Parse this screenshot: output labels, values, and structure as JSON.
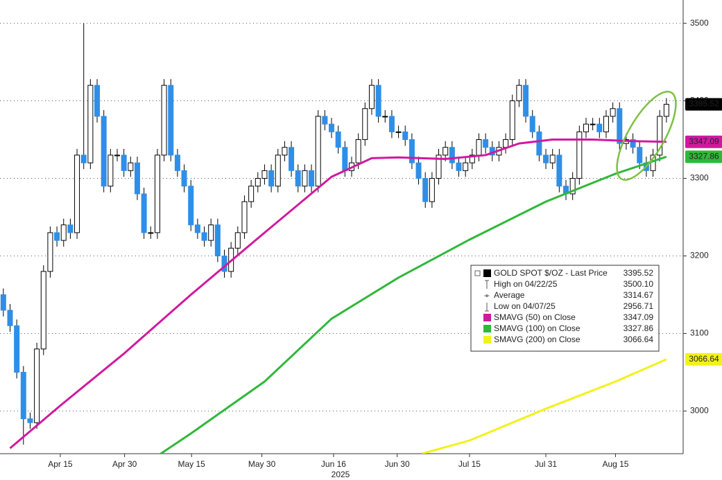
{
  "chart_data": {
    "type": "candlestick",
    "xlabel": "2025",
    "xlim": [
      -0.5,
      101.5
    ],
    "xticks": [
      {
        "value": 8.5,
        "label": "Apr 15"
      },
      {
        "value": 18.1,
        "label": "Apr 30"
      },
      {
        "value": 28.1,
        "label": "May 15"
      },
      {
        "value": 38.6,
        "label": "May 30"
      },
      {
        "value": 49.3,
        "label": "Jun 16"
      },
      {
        "value": 58.8,
        "label": "Jun 30"
      },
      {
        "value": 69.6,
        "label": "Jul 15"
      },
      {
        "value": 81,
        "label": "Jul 31"
      },
      {
        "value": 91.4,
        "label": "Aug 15"
      }
    ],
    "ylim": [
      2945,
      3530
    ],
    "yticks": [
      3000,
      3100,
      3200,
      3300,
      3400,
      3500
    ],
    "yticks_labeled": [
      0,
      1,
      2,
      3,
      5
    ],
    "grid": true,
    "up_color": "#ffffff",
    "down_color": "#2f8fe8",
    "open": [
      3150,
      3130,
      3110,
      3050,
      2990,
      2985,
      3080,
      3180,
      3230,
      3220,
      3240,
      3230,
      3330,
      3320,
      3420,
      3380,
      3290,
      3330,
      3330,
      3310,
      3320,
      3280,
      3230,
      3230,
      3330,
      3420,
      3330,
      3310,
      3290,
      3240,
      3230,
      3220,
      3240,
      3200,
      3180,
      3210,
      3230,
      3270,
      3290,
      3300,
      3310,
      3290,
      3330,
      3340,
      3310,
      3290,
      3310,
      3290,
      3380,
      3370,
      3360,
      3340,
      3310,
      3320,
      3350,
      3390,
      3420,
      3380,
      3380,
      3360,
      3360,
      3350,
      3320,
      3300,
      3270,
      3300,
      3330,
      3340,
      3320,
      3310,
      3320,
      3330,
      3350,
      3340,
      3330,
      3340,
      3350,
      3400,
      3420,
      3380,
      3360,
      3330,
      3320,
      3330,
      3290,
      3280,
      3300,
      3360,
      3370,
      3370,
      3360,
      3380,
      3390,
      3345,
      3350,
      3340,
      3320,
      3310,
      3330,
      3380
    ],
    "high": [
      3158,
      3138,
      3118,
      3058,
      2998,
      3088,
      3188,
      3238,
      3238,
      3248,
      3248,
      3338,
      3500.1,
      3428,
      3428,
      3388,
      3338,
      3338,
      3338,
      3328,
      3328,
      3288,
      3238,
      3338,
      3428,
      3428,
      3338,
      3318,
      3298,
      3248,
      3238,
      3248,
      3248,
      3208,
      3218,
      3238,
      3278,
      3298,
      3308,
      3318,
      3318,
      3338,
      3348,
      3348,
      3318,
      3318,
      3318,
      3388,
      3388,
      3378,
      3368,
      3348,
      3328,
      3358,
      3398,
      3428,
      3428,
      3388,
      3388,
      3368,
      3368,
      3358,
      3328,
      3308,
      3308,
      3338,
      3348,
      3348,
      3328,
      3328,
      3338,
      3358,
      3358,
      3348,
      3348,
      3358,
      3408,
      3428,
      3428,
      3388,
      3368,
      3338,
      3338,
      3338,
      3298,
      3308,
      3368,
      3378,
      3378,
      3378,
      3388,
      3398,
      3398,
      3358,
      3358,
      3348,
      3328,
      3338,
      3388,
      3403.52
    ],
    "low": [
      3122,
      3102,
      3042,
      2956.71,
      2977,
      2977,
      3072,
      3172,
      3212,
      3212,
      3222,
      3222,
      3312,
      3312,
      3372,
      3282,
      3282,
      3322,
      3302,
      3302,
      3272,
      3222,
      3222,
      3222,
      3322,
      3322,
      3302,
      3282,
      3232,
      3222,
      3212,
      3212,
      3192,
      3172,
      3172,
      3202,
      3222,
      3262,
      3282,
      3292,
      3282,
      3282,
      3322,
      3302,
      3282,
      3282,
      3282,
      3282,
      3362,
      3352,
      3332,
      3302,
      3302,
      3312,
      3342,
      3382,
      3372,
      3372,
      3352,
      3352,
      3342,
      3312,
      3292,
      3262,
      3262,
      3292,
      3322,
      3312,
      3302,
      3302,
      3312,
      3322,
      3332,
      3322,
      3322,
      3332,
      3342,
      3392,
      3372,
      3352,
      3322,
      3312,
      3312,
      3282,
      3272,
      3272,
      3292,
      3352,
      3362,
      3352,
      3352,
      3372,
      3337,
      3337,
      3332,
      3312,
      3302,
      3302,
      3322,
      3372
    ],
    "close": [
      3130,
      3110,
      3050,
      2990,
      2985,
      3080,
      3180,
      3230,
      3220,
      3240,
      3230,
      3330,
      3320,
      3420,
      3380,
      3290,
      3330,
      3330,
      3310,
      3320,
      3280,
      3230,
      3230,
      3330,
      3420,
      3330,
      3310,
      3290,
      3240,
      3230,
      3220,
      3240,
      3200,
      3180,
      3210,
      3230,
      3270,
      3290,
      3300,
      3310,
      3290,
      3330,
      3340,
      3310,
      3290,
      3310,
      3290,
      3380,
      3370,
      3360,
      3340,
      3310,
      3320,
      3350,
      3390,
      3420,
      3380,
      3380,
      3360,
      3360,
      3350,
      3320,
      3300,
      3270,
      3300,
      3330,
      3340,
      3320,
      3310,
      3320,
      3330,
      3350,
      3340,
      3330,
      3340,
      3350,
      3400,
      3420,
      3380,
      3360,
      3330,
      3320,
      3330,
      3290,
      3280,
      3300,
      3360,
      3370,
      3370,
      3360,
      3380,
      3390,
      3345,
      3350,
      3340,
      3320,
      3310,
      3330,
      3380,
      3395.52
    ],
    "last_label": "3395.52",
    "series": [
      {
        "name": "SMAVG (50)  on Close",
        "color": "#d0199f",
        "x": [
          1,
          8.5,
          18,
          28,
          39,
          49,
          55,
          59,
          66,
          72,
          77,
          82,
          88,
          94,
          99
        ],
        "values": [
          2952,
          3007,
          3074,
          3150,
          3230,
          3302,
          3326,
          3327,
          3325,
          3330,
          3345,
          3350,
          3350,
          3348,
          3347.09
        ],
        "last_label": "3347.09",
        "text_color": "#000000"
      },
      {
        "name": "SMAVG (100)  on Close",
        "color": "#2fb83a",
        "x": [
          23.5,
          28,
          39,
          49,
          59,
          69.6,
          81,
          91.4,
          99
        ],
        "values": [
          2945,
          2971,
          3038,
          3119,
          3172,
          3221,
          3270,
          3306,
          3327.86
        ],
        "last_label": "3327.86",
        "text_color": "#ffffff"
      },
      {
        "name": "SMAVG (200)  on Close",
        "color": "#f2f21a",
        "x": [
          62.5,
          69.6,
          81,
          91.4,
          99
        ],
        "values": [
          2945,
          2962,
          3003,
          3038,
          3066.64
        ],
        "last_label": "3066.64",
        "text_color": "#000000"
      }
    ],
    "legend": {
      "rows": [
        {
          "label": "GOLD SPOT $/OZ - Last Price",
          "value": "3395.52"
        },
        {
          "label": "High on 04/22/25",
          "value": "3500.10"
        },
        {
          "label": "Average",
          "value": "3314.67"
        },
        {
          "label": "Low on 04/07/25",
          "value": "2956.71"
        },
        {
          "label": "SMAVG (50)  on Close",
          "value": "3347.09"
        },
        {
          "label": "SMAVG (100)  on Close",
          "value": "3327.86"
        },
        {
          "label": "SMAVG (200)  on Close",
          "value": "3066.64"
        }
      ]
    }
  }
}
